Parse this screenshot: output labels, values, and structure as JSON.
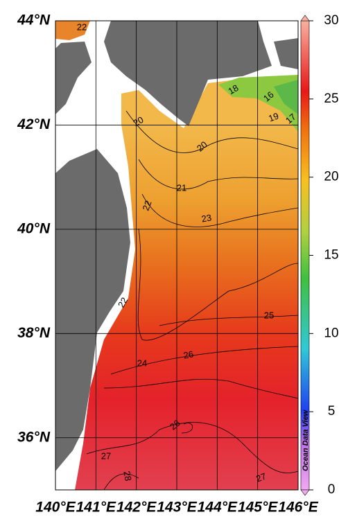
{
  "map": {
    "latlim": [
      35,
      44
    ],
    "lat_ticks": [
      {
        "value": 44,
        "label": "44°N"
      },
      {
        "value": 42,
        "label": "42°N"
      },
      {
        "value": 40,
        "label": "40°N"
      },
      {
        "value": 38,
        "label": "38°N"
      },
      {
        "value": 36,
        "label": "36°N"
      }
    ],
    "lonlim": [
      140,
      146
    ],
    "lon_ticks": [
      {
        "value": 140,
        "label": "140°E"
      },
      {
        "value": 141,
        "label": "141°E"
      },
      {
        "value": 142,
        "label": "142°E"
      },
      {
        "value": 143,
        "label": "143°E"
      },
      {
        "value": 144,
        "label": "144°E"
      },
      {
        "value": 145,
        "label": "145°E"
      },
      {
        "value": 146,
        "label": "146°E"
      }
    ],
    "colorbar": {
      "lim": [
        0,
        30
      ],
      "ticks": [
        0,
        5,
        10,
        15,
        20,
        25,
        30
      ]
    },
    "contour_labels": [
      22,
      18,
      16,
      17,
      20,
      19,
      20,
      21,
      22,
      23,
      22,
      25,
      26,
      24,
      28,
      27,
      28,
      27
    ],
    "watermark": "Ocean Data View"
  }
}
